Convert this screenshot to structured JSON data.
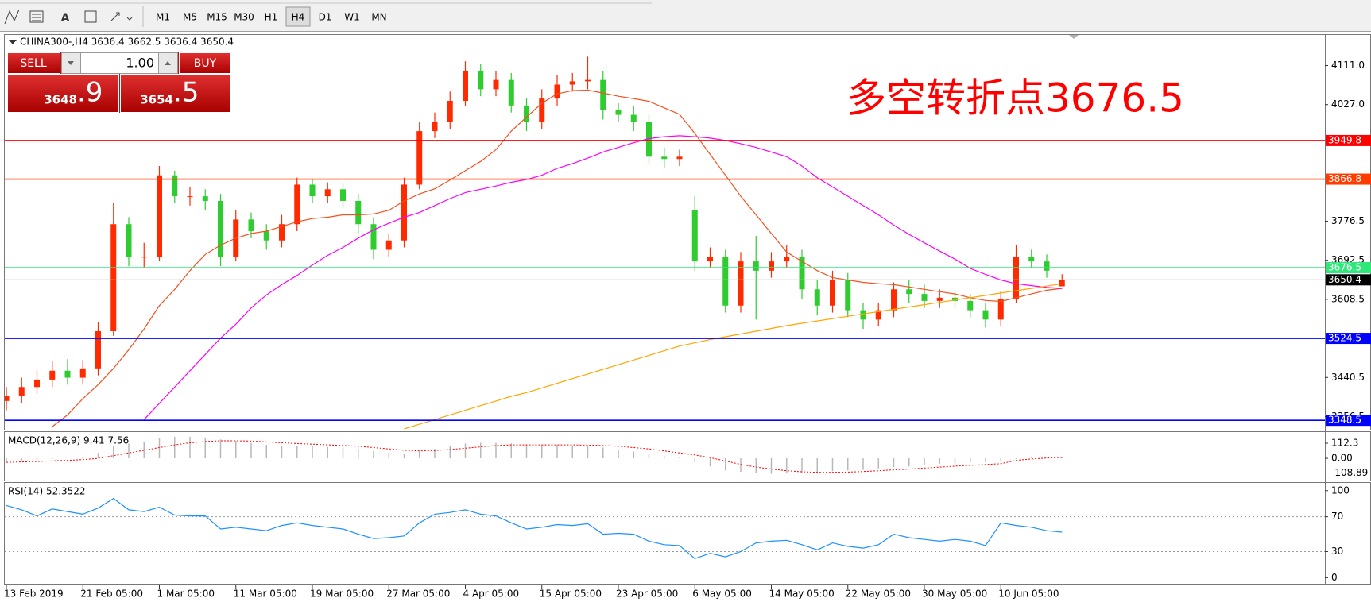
{
  "toolbar": {
    "timeframes": [
      "M1",
      "M5",
      "M15",
      "M30",
      "H1",
      "H4",
      "D1",
      "W1",
      "MN"
    ],
    "active": "H4"
  },
  "trade_panel": {
    "sell": "SELL",
    "buy": "BUY",
    "volume": "1.00",
    "bid": "3648",
    "bid_big": ".9",
    "ask": "3654",
    "ask_big": ".5"
  },
  "chart_data": [
    {
      "type": "candlestick",
      "title": "CHINA300-,H4  3636.4 3662.5 3636.4 3650.4",
      "annotation": "多空转折点3676.5",
      "up_color": "#ff2a00",
      "down_color": "#2ecc2e",
      "categories": [
        "13 Feb 2019",
        null,
        null,
        null,
        null,
        "21 Feb 05:00",
        null,
        null,
        null,
        null,
        "1 Mar 05:00",
        null,
        null,
        null,
        null,
        "11 Mar 05:00",
        null,
        null,
        null,
        null,
        "19 Mar 05:00",
        null,
        null,
        null,
        null,
        "27 Mar 05:00",
        null,
        null,
        null,
        null,
        "4 Apr 05:00",
        null,
        null,
        null,
        null,
        "15 Apr 05:00",
        null,
        null,
        null,
        null,
        "23 Apr 05:00",
        null,
        null,
        null,
        null,
        "6 May 05:00",
        null,
        null,
        null,
        null,
        "14 May 05:00",
        null,
        null,
        null,
        null,
        "22 May 05:00",
        null,
        null,
        null,
        null,
        "30 May 05:00",
        null,
        null,
        null,
        null,
        "10 Jun 05:00",
        null,
        null,
        null,
        null
      ],
      "open": [
        3390,
        3400,
        3420,
        3436,
        3455,
        3440,
        3460,
        3540,
        3770,
        3700,
        3700,
        3875,
        3830,
        3830,
        3820,
        3700,
        3780,
        3755,
        3735,
        3770,
        3855,
        3830,
        3845,
        3820,
        3770,
        3715,
        3735,
        3855,
        3970,
        3990,
        4035,
        4100,
        4060,
        4080,
        4025,
        3990,
        4040,
        4070,
        4077,
        4080,
        4015,
        4005,
        3990,
        3915,
        3910,
        3800,
        3690,
        3700,
        3595,
        3690,
        3670,
        3690,
        3700,
        3630,
        3595,
        3650,
        3585,
        3565,
        3585,
        3630,
        3620,
        3605,
        3612,
        3605,
        3585,
        3565,
        3610,
        3700,
        3690,
        3636.4
      ],
      "high": [
        3420,
        3440,
        3456,
        3475,
        3480,
        3478,
        3560,
        3815,
        3785,
        3730,
        3895,
        3885,
        3850,
        3845,
        3835,
        3800,
        3795,
        3770,
        3790,
        3870,
        3868,
        3860,
        3858,
        3835,
        3785,
        3750,
        3870,
        3990,
        4010,
        4055,
        4120,
        4115,
        4100,
        4095,
        4040,
        4060,
        4090,
        4095,
        4130,
        4100,
        4030,
        4025,
        4005,
        3935,
        3930,
        3830,
        3720,
        3715,
        3710,
        3745,
        3710,
        3725,
        3715,
        3650,
        3670,
        3665,
        3600,
        3600,
        3645,
        3650,
        3640,
        3630,
        3628,
        3620,
        3600,
        3625,
        3725,
        3715,
        3705,
        3662.5
      ],
      "low": [
        3370,
        3385,
        3405,
        3420,
        3425,
        3425,
        3445,
        3530,
        3680,
        3675,
        3690,
        3815,
        3810,
        3800,
        3680,
        3690,
        3740,
        3715,
        3720,
        3755,
        3815,
        3815,
        3805,
        3750,
        3695,
        3700,
        3720,
        3845,
        3955,
        3975,
        4025,
        4045,
        4045,
        4010,
        3970,
        3975,
        4025,
        4055,
        4060,
        3995,
        3990,
        3970,
        3900,
        3890,
        3895,
        3670,
        3675,
        3580,
        3580,
        3565,
        3655,
        3675,
        3610,
        3575,
        3580,
        3570,
        3545,
        3550,
        3570,
        3600,
        3590,
        3590,
        3590,
        3570,
        3548,
        3550,
        3600,
        3675,
        3655,
        3636.4
      ],
      "close": [
        3400,
        3420,
        3436,
        3455,
        3440,
        3460,
        3540,
        3770,
        3700,
        3700,
        3875,
        3830,
        3830,
        3820,
        3700,
        3780,
        3755,
        3735,
        3770,
        3855,
        3830,
        3845,
        3820,
        3770,
        3715,
        3735,
        3855,
        3970,
        3990,
        4035,
        4100,
        4060,
        4080,
        4025,
        3990,
        4040,
        4070,
        4077,
        4080,
        4015,
        4005,
        3990,
        3915,
        3910,
        3915,
        3690,
        3700,
        3595,
        3690,
        3670,
        3690,
        3700,
        3630,
        3595,
        3650,
        3585,
        3565,
        3585,
        3630,
        3620,
        3605,
        3612,
        3605,
        3585,
        3565,
        3610,
        3700,
        3690,
        3670,
        3650.4
      ],
      "series": [
        {
          "color": "#f4511e",
          "values": [
            null,
            null,
            null,
            3335,
            3360,
            3395,
            3425,
            3460,
            3500,
            3545,
            3595,
            3630,
            3670,
            3705,
            3725,
            3740,
            3750,
            3755,
            3765,
            3775,
            3782,
            3785,
            3790,
            3790,
            3792,
            3800,
            3820,
            3835,
            3846,
            3865,
            3885,
            3905,
            3930,
            3970,
            4000,
            4030,
            4050,
            4057,
            4058,
            4052,
            4045,
            4040,
            4034,
            4020,
            4006,
            3965,
            3920,
            3875,
            3830,
            3790,
            3750,
            3710,
            3690,
            3670,
            3655,
            3650,
            3645,
            3642,
            3640,
            3635,
            3630,
            3625,
            3620,
            3612,
            3606,
            3604,
            3612,
            3620,
            3628,
            3632
          ]
        },
        {
          "color": "#ff00ff",
          "values": [
            null,
            null,
            null,
            null,
            null,
            null,
            null,
            null,
            null,
            3350,
            3385,
            3420,
            3455,
            3490,
            3525,
            3555,
            3590,
            3618,
            3640,
            3660,
            3682,
            3703,
            3720,
            3740,
            3758,
            3772,
            3785,
            3795,
            3810,
            3825,
            3838,
            3845,
            3852,
            3860,
            3866,
            3875,
            3890,
            3900,
            3912,
            3925,
            3935,
            3945,
            3954,
            3958,
            3960,
            3958,
            3955,
            3950,
            3943,
            3935,
            3925,
            3915,
            3895,
            3870,
            3850,
            3830,
            3810,
            3790,
            3768,
            3748,
            3730,
            3712,
            3695,
            3675,
            3662,
            3650,
            3642,
            3638,
            3634,
            3632
          ]
        },
        {
          "color": "#ffa500",
          "values": [
            null,
            null,
            null,
            null,
            null,
            null,
            null,
            null,
            null,
            null,
            null,
            null,
            null,
            null,
            null,
            null,
            null,
            null,
            null,
            null,
            null,
            null,
            null,
            null,
            null,
            null,
            3330,
            3340,
            3350,
            3360,
            3370,
            3380,
            3390,
            3400,
            3408,
            3418,
            3428,
            3438,
            3448,
            3458,
            3468,
            3478,
            3488,
            3498,
            3508,
            3515,
            3522,
            3528,
            3534,
            3540,
            3546,
            3552,
            3557,
            3562,
            3567,
            3572,
            3577,
            3582,
            3587,
            3592,
            3597,
            3602,
            3607,
            3612,
            3617,
            3622,
            3627,
            3632,
            3637,
            3642
          ]
        }
      ],
      "levels": [
        {
          "value": 3949.8,
          "color": "#ff0000"
        },
        {
          "value": 3866.8,
          "color": "#ff3c00"
        },
        {
          "value": 3676.5,
          "color": "#2ee87a"
        },
        {
          "value": 3650.4,
          "color": "#000000"
        },
        {
          "value": 3524.5,
          "color": "#0000ff"
        },
        {
          "value": 3348.5,
          "color": "#0000ff"
        }
      ],
      "ylim": [
        3330,
        4175
      ],
      "yticks": [
        {
          "value": 4111,
          "label": "4111.0"
        },
        {
          "value": 4027,
          "label": "4027.0"
        },
        3776.5,
        3692.5,
        3608.5,
        3440.5,
        3356.5
      ]
    },
    {
      "type": "macd",
      "title": "MACD(12,26,9) 9.41 7.56",
      "histogram": {
        "color": "#b8b8b8",
        "values": [
          -20,
          -15,
          -10,
          -5,
          0,
          10,
          40,
          90,
          110,
          120,
          150,
          160,
          160,
          155,
          140,
          130,
          115,
          100,
          95,
          95,
          90,
          85,
          80,
          70,
          55,
          40,
          35,
          50,
          70,
          90,
          110,
          115,
          115,
          110,
          100,
          100,
          100,
          95,
          90,
          80,
          65,
          50,
          30,
          15,
          5,
          -30,
          -60,
          -90,
          -100,
          -110,
          -115,
          -110,
          -110,
          -105,
          -95,
          -90,
          -85,
          -75,
          -65,
          -60,
          -50,
          -40,
          -35,
          -30,
          -30,
          -20,
          -5,
          5,
          9,
          9.41
        ]
      },
      "signal": {
        "color": "#ff0000",
        "values": [
          -30,
          -27,
          -23,
          -19,
          -15,
          -10,
          0,
          20,
          40,
          60,
          80,
          100,
          115,
          125,
          130,
          130,
          128,
          122,
          116,
          110,
          105,
          100,
          95,
          90,
          80,
          70,
          60,
          55,
          58,
          65,
          75,
          85,
          95,
          100,
          100,
          100,
          100,
          100,
          98,
          95,
          90,
          80,
          70,
          55,
          40,
          25,
          5,
          -20,
          -45,
          -65,
          -80,
          -92,
          -100,
          -104,
          -104,
          -102,
          -98,
          -92,
          -86,
          -80,
          -72,
          -65,
          -58,
          -52,
          -46,
          -40,
          -15,
          -5,
          2,
          7.56
        ]
      },
      "ylim": [
        -153,
        189
      ],
      "yticks": [
        112.3,
        {
          "value": 0,
          "label": "0.00"
        },
        -108.89
      ]
    },
    {
      "type": "line",
      "title": "RSI(14) 52.3522",
      "color": "#1e90ff",
      "values": [
        83,
        78,
        71,
        79,
        76,
        73,
        80,
        91,
        78,
        76,
        81,
        72,
        71,
        71,
        56,
        58,
        56,
        54,
        60,
        63,
        60,
        58,
        56,
        50,
        45,
        46,
        48,
        63,
        73,
        75,
        78,
        73,
        71,
        63,
        56,
        58,
        61,
        60,
        62,
        50,
        51,
        50,
        42,
        38,
        37,
        22,
        28,
        24,
        30,
        40,
        42,
        43,
        38,
        32,
        40,
        36,
        34,
        38,
        50,
        46,
        44,
        42,
        44,
        42,
        37,
        63,
        60,
        58,
        54,
        52.3522
      ],
      "levels": [
        70,
        30
      ],
      "ylim": [
        -6,
        108
      ],
      "yticks": [
        100,
        70,
        30,
        0
      ]
    }
  ]
}
